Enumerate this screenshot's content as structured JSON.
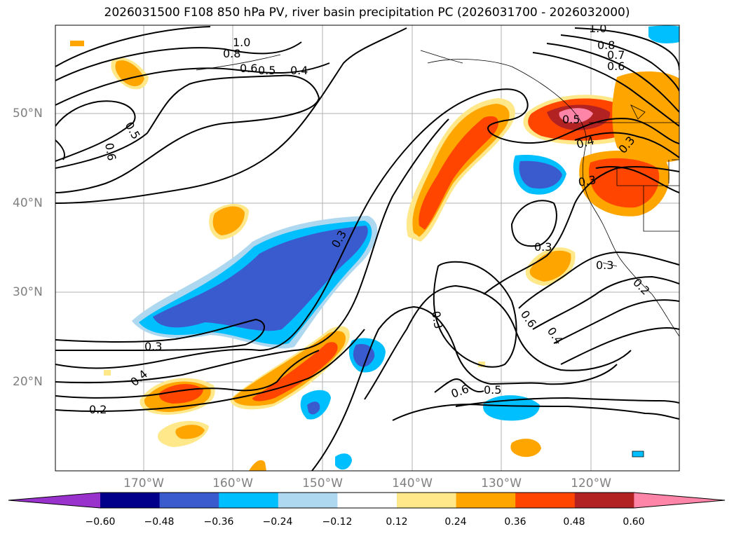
{
  "title": "2026031500 F108 850 hPa PV, river basin precipitation PC (2026031700 - 2026032000)",
  "map": {
    "lat_labels": [
      "50°N",
      "40°N",
      "30°N",
      "20°N"
    ],
    "lon_labels": [
      "170°W",
      "160°W",
      "150°W",
      "140°W",
      "130°W",
      "120°W"
    ],
    "contour_labels": [
      "1.0",
      "0.8",
      "0.6",
      "0.5",
      "0.4",
      "0.5",
      "0.6",
      "0.3",
      "0.3",
      "0.4",
      "0.2",
      "0.3",
      "0.6",
      "0.4",
      "0.6",
      "0.5",
      "0.3",
      "0.5",
      "0.4",
      "0.3",
      "0.3",
      "0.3",
      "0.2",
      "1.0",
      "0.8",
      "0.7",
      "0.6"
    ]
  },
  "colorbar": {
    "ticks": [
      "−0.60",
      "−0.48",
      "−0.36",
      "−0.24",
      "−0.12",
      "0.12",
      "0.24",
      "0.36",
      "0.48",
      "0.60"
    ],
    "colors": [
      "#9932cc",
      "#00008b",
      "#3a5bcd",
      "#00bfff",
      "#add8f0",
      "#ffffff",
      "#ffe88a",
      "#ffa500",
      "#ff4500",
      "#b22222",
      "#ff85a8"
    ]
  }
}
